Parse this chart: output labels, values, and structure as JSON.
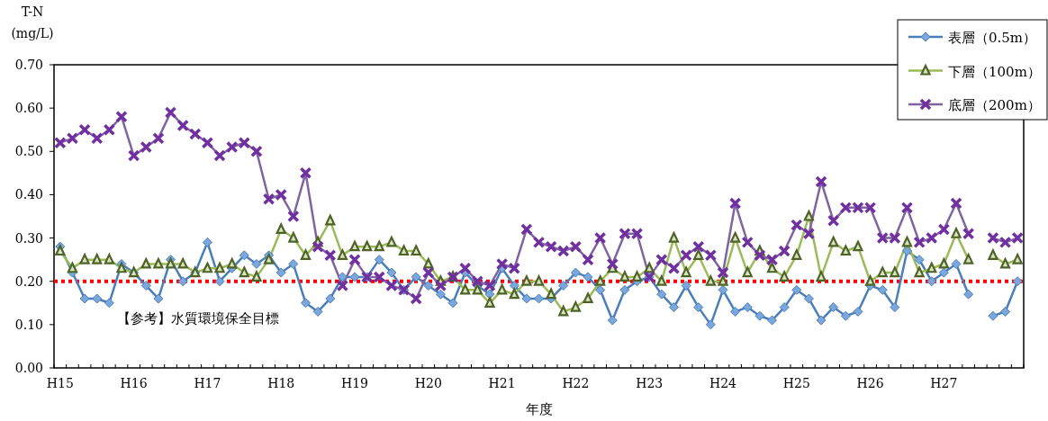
{
  "chart_data": {
    "type": "line",
    "xlabel": "年度",
    "ylabel": "T-N\n(mg/L)",
    "categories": [
      "H15",
      null,
      null,
      null,
      null,
      null,
      "H16",
      null,
      null,
      null,
      null,
      null,
      "H17",
      null,
      null,
      null,
      null,
      null,
      "H18",
      null,
      null,
      null,
      null,
      null,
      "H19",
      null,
      null,
      null,
      null,
      null,
      "H20",
      null,
      null,
      null,
      null,
      null,
      "H21",
      null,
      null,
      null,
      null,
      null,
      "H22",
      null,
      null,
      null,
      null,
      null,
      "H23",
      null,
      null,
      null,
      null,
      null,
      "H24",
      null,
      null,
      null,
      null,
      null,
      "H25",
      null,
      null,
      null,
      null,
      null,
      "H26",
      null,
      null,
      null,
      null,
      null,
      "H27",
      null,
      null,
      null,
      null,
      null,
      null
    ],
    "series": [
      {
        "name": "表層（0.5m）",
        "color": "#4a7ebb",
        "marker": "diamond",
        "values": [
          0.28,
          0.22,
          0.16,
          0.16,
          0.15,
          0.24,
          0.22,
          0.19,
          0.16,
          0.25,
          0.2,
          0.22,
          0.29,
          0.2,
          0.23,
          0.26,
          0.24,
          0.26,
          0.22,
          0.24,
          0.15,
          0.13,
          0.16,
          0.21,
          0.21,
          0.21,
          0.25,
          0.22,
          0.18,
          0.21,
          0.19,
          0.17,
          0.15,
          0.22,
          0.19,
          0.17,
          0.23,
          0.19,
          0.16,
          0.16,
          0.16,
          0.19,
          0.22,
          0.21,
          0.18,
          0.11,
          0.18,
          0.2,
          0.21,
          0.17,
          0.14,
          0.19,
          0.14,
          0.1,
          0.18,
          0.13,
          0.14,
          0.12,
          0.11,
          0.14,
          0.18,
          0.16,
          0.11,
          0.14,
          0.12,
          0.13,
          0.19,
          0.18,
          0.14,
          0.27,
          0.25,
          0.2,
          0.22,
          0.24,
          0.17,
          null,
          0.12,
          0.13,
          0.2
        ]
      },
      {
        "name": "下層（100m）",
        "color": "#9bbb59",
        "marker": "triangle",
        "values": [
          0.27,
          0.23,
          0.25,
          0.25,
          0.25,
          0.23,
          0.22,
          0.24,
          0.24,
          0.24,
          0.24,
          0.22,
          0.23,
          0.23,
          0.24,
          0.22,
          0.21,
          0.25,
          0.32,
          0.3,
          0.26,
          0.29,
          0.34,
          0.26,
          0.28,
          0.28,
          0.28,
          0.29,
          0.27,
          0.27,
          0.24,
          0.2,
          0.21,
          0.18,
          0.18,
          0.15,
          0.18,
          0.17,
          0.2,
          0.2,
          0.17,
          0.13,
          0.14,
          0.16,
          0.2,
          0.23,
          0.21,
          0.21,
          0.23,
          0.2,
          0.3,
          0.22,
          0.26,
          0.2,
          0.2,
          0.3,
          0.22,
          0.27,
          0.23,
          0.21,
          0.26,
          0.35,
          0.21,
          0.29,
          0.27,
          0.28,
          0.2,
          0.22,
          0.22,
          0.29,
          0.22,
          0.23,
          0.24,
          0.31,
          0.25,
          null,
          0.26,
          0.24,
          0.25
        ]
      },
      {
        "name": "底層（200m）",
        "color": "#8064a2",
        "marker": "cross",
        "values": [
          0.52,
          0.53,
          0.55,
          0.53,
          0.55,
          0.58,
          0.49,
          0.51,
          0.53,
          0.59,
          0.56,
          0.54,
          0.52,
          0.49,
          0.51,
          0.52,
          0.5,
          0.39,
          0.4,
          0.35,
          0.45,
          0.28,
          0.26,
          0.19,
          0.25,
          0.21,
          0.21,
          0.19,
          0.18,
          0.16,
          0.22,
          0.19,
          0.21,
          0.23,
          0.2,
          0.19,
          0.24,
          0.23,
          0.32,
          0.29,
          0.28,
          0.27,
          0.28,
          0.25,
          0.3,
          0.24,
          0.31,
          0.31,
          0.21,
          0.25,
          0.23,
          0.26,
          0.28,
          0.26,
          0.22,
          0.38,
          0.29,
          0.26,
          0.25,
          0.27,
          0.33,
          0.31,
          0.43,
          0.34,
          0.37,
          0.37,
          0.37,
          0.3,
          0.3,
          0.37,
          0.29,
          0.3,
          0.32,
          0.38,
          0.31,
          null,
          0.3,
          0.29,
          0.3
        ]
      }
    ],
    "ylim": [
      0,
      0.7
    ],
    "yticks": [
      {
        "value": 0,
        "label": "0.00"
      },
      {
        "value": 0.1,
        "label": "0.10"
      },
      {
        "value": 0.2,
        "label": "0.20"
      },
      {
        "value": 0.3,
        "label": "0.30"
      },
      {
        "value": 0.4,
        "label": "0.40"
      },
      {
        "value": 0.5,
        "label": "0.50"
      },
      {
        "value": 0.6,
        "label": "0.60"
      },
      {
        "value": 0.7,
        "label": "0.70"
      }
    ],
    "ref_lines": [
      {
        "axis": "y",
        "value": 0.2,
        "label": "【参考】水質環境保全目標",
        "color": "#ff0000",
        "line_style": "dotted"
      }
    ],
    "legend": "top right"
  }
}
